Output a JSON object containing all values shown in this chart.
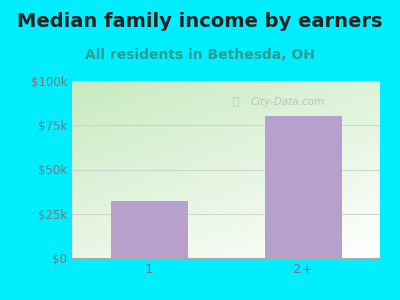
{
  "title": "Median family income by earners",
  "subtitle": "All residents in Bethesda, OH",
  "categories": [
    "1",
    "2+"
  ],
  "values": [
    32000,
    80000
  ],
  "bar_color": "#b8a0cc",
  "outer_bg": "#00eeff",
  "title_color": "#222222",
  "subtitle_color": "#2a9d8f",
  "yticks": [
    0,
    25000,
    50000,
    75000,
    100000
  ],
  "ytick_labels": [
    "$0",
    "$25k",
    "$50k",
    "$75k",
    "$100k"
  ],
  "ylim": [
    0,
    100000
  ],
  "watermark": "City-Data.com",
  "title_fontsize": 14,
  "subtitle_fontsize": 10,
  "tick_color": "#777777",
  "grid_color": "#cccccc",
  "plot_bg_colors": [
    "#c5e8c0",
    "#f5fff5",
    "#ffffff"
  ],
  "bar_width": 0.5
}
